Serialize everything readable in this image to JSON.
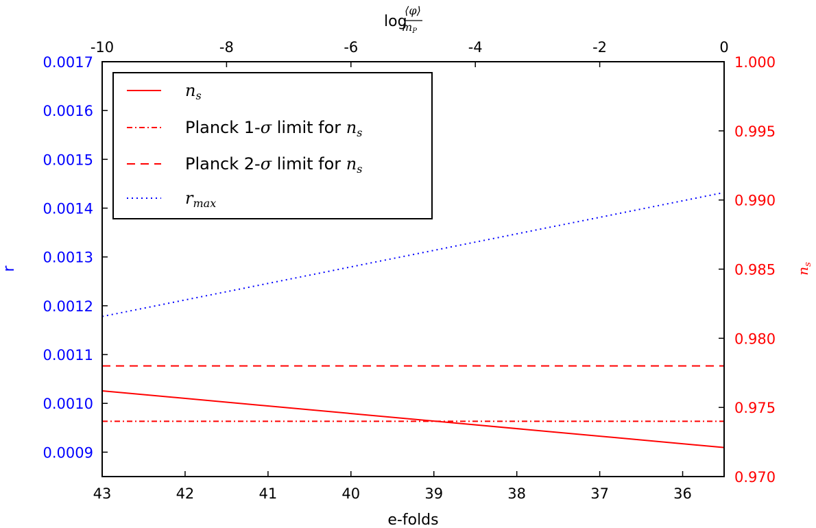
{
  "chart_data": {
    "type": "line",
    "x_bottom": {
      "label": "e-folds",
      "lim": [
        43,
        35.5
      ],
      "ticks": [
        43,
        42,
        41,
        40,
        39,
        38,
        37,
        36
      ]
    },
    "x_top": {
      "label_prefix": "log",
      "label_fraction_numerator": "⟨φ⟩",
      "label_fraction_denominator": "m",
      "label_fraction_denominator_sub": "P",
      "lim": [
        -10,
        0
      ],
      "ticks": [
        "-10",
        "-8",
        "-6",
        "-4",
        "-2",
        "0"
      ]
    },
    "y_left": {
      "label": "r",
      "color": "#0000ff",
      "lim": [
        0.00085,
        0.0017
      ],
      "ticks": [
        "0.0009",
        "0.0010",
        "0.0011",
        "0.0012",
        "0.0013",
        "0.0014",
        "0.0015",
        "0.0016",
        "0.0017"
      ]
    },
    "y_right": {
      "label": "n",
      "label_sub": "s",
      "color": "#ff0000",
      "lim": [
        0.97,
        1.0
      ],
      "ticks": [
        "0.970",
        "0.975",
        "0.980",
        "0.985",
        "0.990",
        "0.995",
        "1.000"
      ]
    },
    "series": [
      {
        "name": "n",
        "name_sub": "s",
        "axis": "right",
        "color": "#ff0000",
        "dash": "solid",
        "x": [
          43,
          35.5
        ],
        "y": [
          0.9762,
          0.9721
        ]
      },
      {
        "name_prefix": "Planck 1-",
        "name_sigma": "σ",
        "name_mid": " limit for ",
        "name_var": "n",
        "name_sub": "s",
        "axis": "right",
        "color": "#ff0000",
        "dash": "dashdot",
        "x": [
          43,
          35.5
        ],
        "y": [
          0.974,
          0.974
        ]
      },
      {
        "name_prefix": "Planck 2-",
        "name_sigma": "σ",
        "name_mid": " limit for ",
        "name_var": "n",
        "name_sub": "s",
        "axis": "right",
        "color": "#ff0000",
        "dash": "dashed",
        "x": [
          43,
          35.5
        ],
        "y": [
          0.978,
          0.978
        ]
      },
      {
        "name": "r",
        "name_sub": "max",
        "axis": "left",
        "color": "#0000ff",
        "dash": "dotted",
        "x": [
          43,
          35.5
        ],
        "y": [
          0.001178,
          0.001432
        ]
      }
    ],
    "legend_position": "top-left",
    "grid": false
  }
}
